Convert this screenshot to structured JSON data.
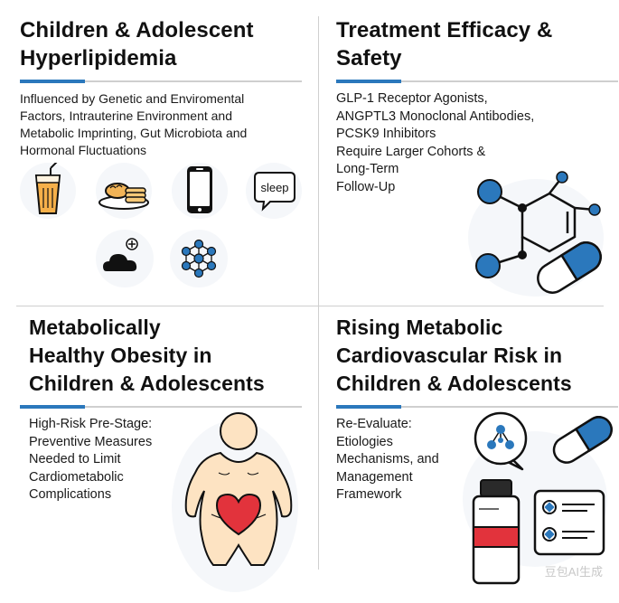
{
  "quadrants": [
    {
      "title_lines": [
        "Children & Adolescent",
        "Hyperlipidemia"
      ],
      "body_lines": [
        "Influenced by Genetic and Enviromental",
        "Factors, Intrauterine Environment and",
        "Metabolic Imprinting, Gut Microbiota and",
        "Hormonal Fluctuations"
      ],
      "icons": [
        "juice-cup-icon",
        "pancakes-icon",
        "smartphone-icon",
        "sleep-bubble-icon",
        "cloud-plus-icon",
        "microbiota-network-icon"
      ],
      "sleep_label": "sleep"
    },
    {
      "title_lines": [
        "Treatment Efficacy &",
        "Safety"
      ],
      "body_lines": [
        "GLP-1 Receptor Agonists,",
        "ANGPTL3 Monoclonal Antibodies,",
        "PCSK9 Inhibitors",
        "Require Larger Cohorts &",
        "Long-Term",
        "Follow-Up"
      ],
      "icons": [
        "molecule-icon",
        "capsule-icon"
      ]
    },
    {
      "title_lines": [
        "Metabolically",
        "Healthy Obesity in",
        "Children & Adolescents"
      ],
      "body_lines": [
        "High-Risk Pre-Stage:",
        "Preventive Measures",
        "Needed to Limit",
        "Cardiometabolic",
        "Complications"
      ],
      "icons": [
        "body-figure-icon",
        "heart-icon"
      ]
    },
    {
      "title_lines": [
        "Rising Metabolic",
        "Cardiovascular Risk in",
        "Children & Adolescents"
      ],
      "body_lines": [
        "Re-Evaluate:",
        "Etiologies",
        "Mechanisms, and",
        "Management",
        "Framework"
      ],
      "icons": [
        "network-chat-icon",
        "capsule-icon",
        "medicine-bottle-icon",
        "checklist-icon"
      ]
    }
  ],
  "colors": {
    "accent_blue": "#2b78bc",
    "heart_red": "#e2333c",
    "skin": "#fde3c2",
    "juice": "#f6b04a"
  },
  "watermark": "豆包AI生成"
}
